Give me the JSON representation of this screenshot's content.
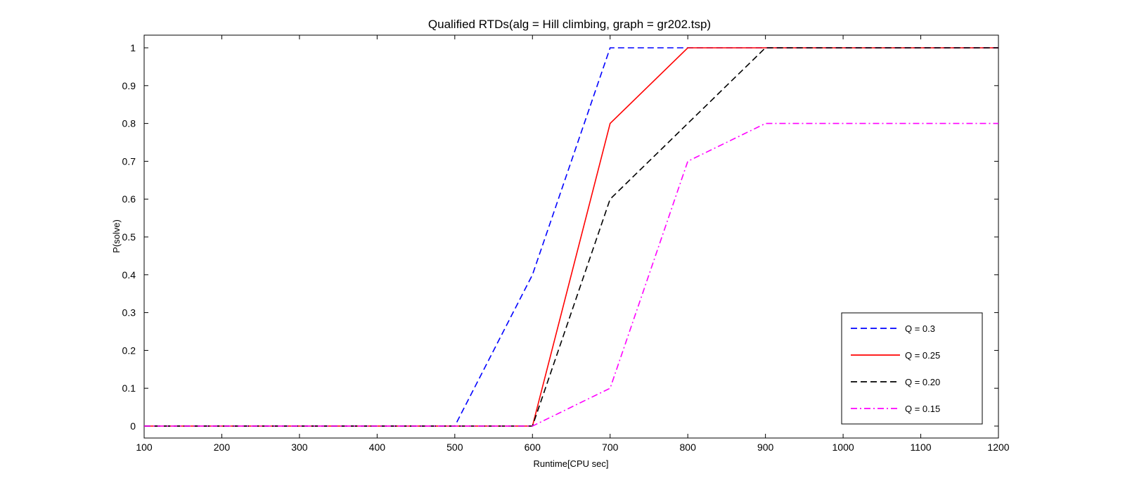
{
  "chart_data": {
    "type": "line",
    "title": "Qualified RTDs(alg = Hill climbing, graph = gr202.tsp)",
    "xlabel": "Runtime[CPU sec]",
    "ylabel": "P(solve)",
    "xlim": [
      100,
      1200
    ],
    "ylim": [
      0,
      1
    ],
    "xticks": [
      "100",
      "200",
      "300",
      "400",
      "500",
      "600",
      "700",
      "800",
      "900",
      "1000",
      "1100",
      "1200"
    ],
    "yticks": [
      "0",
      "0.1",
      "0.2",
      "0.3",
      "0.4",
      "0.5",
      "0.6",
      "0.7",
      "0.8",
      "0.9",
      "1"
    ],
    "grid": false,
    "legend_position": "bottom-right",
    "x": [
      100,
      200,
      300,
      400,
      500,
      600,
      700,
      800,
      900,
      1000,
      1100,
      1200
    ],
    "series": [
      {
        "name": "Q = 0.3",
        "color": "#0000ff",
        "dash": "dashed",
        "values": [
          0,
          0,
          0,
          0,
          0,
          0.4,
          1,
          1,
          1,
          1,
          1,
          1
        ]
      },
      {
        "name": "Q = 0.25",
        "color": "#ff0000",
        "dash": "solid",
        "values": [
          0,
          0,
          0,
          0,
          0,
          0,
          0.8,
          1,
          1,
          1,
          1,
          1
        ]
      },
      {
        "name": "Q = 0.20",
        "color": "#000000",
        "dash": "dashed",
        "values": [
          0,
          0,
          0,
          0,
          0,
          0,
          0.6,
          0.8,
          1,
          1,
          1,
          1
        ]
      },
      {
        "name": "Q = 0.15",
        "color": "#ff00ff",
        "dash": "dashdot",
        "values": [
          0,
          0,
          0,
          0,
          0,
          0,
          0.1,
          0.7,
          0.8,
          0.8,
          0.8,
          0.8
        ]
      }
    ]
  }
}
